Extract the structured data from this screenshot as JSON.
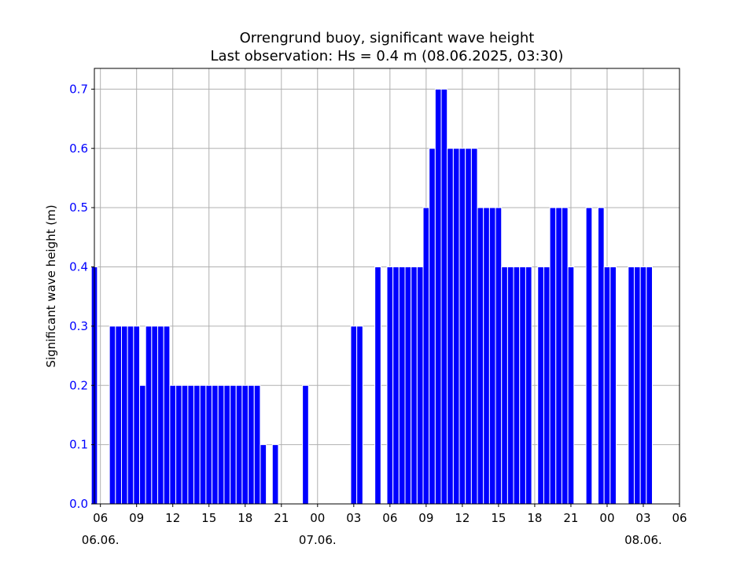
{
  "chart_data": {
    "type": "bar",
    "title": "Orrengrund buoy, significant wave height",
    "subtitle": "Last observation: Hs = 0.4 m (08.06.2025, 03:30)",
    "xlabel": "",
    "ylabel": "Significant wave height (m)",
    "ylim": [
      0.0,
      0.735
    ],
    "xlim": [
      "06.06.2025 05:30",
      "08.06.2025 06:00"
    ],
    "yticks": [
      "0.0",
      "0.1",
      "0.2",
      "0.3",
      "0.4",
      "0.5",
      "0.6",
      "0.7"
    ],
    "xticks": [
      "06",
      "09",
      "12",
      "15",
      "18",
      "21",
      "00",
      "03",
      "06",
      "09",
      "12",
      "15",
      "18",
      "21",
      "00",
      "03",
      "06"
    ],
    "date_labels": [
      "06.06.",
      "07.06.",
      "08.06."
    ],
    "bar_color": "#0000ff",
    "bar_edge_color": "#ffffff",
    "label_color": "#0000ff",
    "grid": true,
    "legend": "none",
    "series": [
      {
        "x": [
          "06.06.2025 05:30",
          "06.06.2025 07:00",
          "06.06.2025 07:30",
          "06.06.2025 08:00",
          "06.06.2025 08:30",
          "06.06.2025 09:00",
          "06.06.2025 09:30",
          "06.06.2025 10:00",
          "06.06.2025 10:30",
          "06.06.2025 11:00",
          "06.06.2025 11:30",
          "06.06.2025 12:00",
          "06.06.2025 12:30",
          "06.06.2025 13:00",
          "06.06.2025 13:30",
          "06.06.2025 14:00",
          "06.06.2025 14:30",
          "06.06.2025 15:00",
          "06.06.2025 15:30",
          "06.06.2025 16:00",
          "06.06.2025 16:30",
          "06.06.2025 17:00",
          "06.06.2025 17:30",
          "06.06.2025 18:00",
          "06.06.2025 18:30",
          "06.06.2025 19:00",
          "06.06.2025 19:30",
          "06.06.2025 20:30",
          "06.06.2025 23:00",
          "07.06.2025 03:00",
          "07.06.2025 03:30",
          "07.06.2025 05:00",
          "07.06.2025 06:00",
          "07.06.2025 06:30",
          "07.06.2025 07:00",
          "07.06.2025 07:30",
          "07.06.2025 08:00",
          "07.06.2025 08:30",
          "07.06.2025 09:00",
          "07.06.2025 09:30",
          "07.06.2025 10:00",
          "07.06.2025 10:30",
          "07.06.2025 11:00",
          "07.06.2025 11:30",
          "07.06.2025 12:00",
          "07.06.2025 12:30",
          "07.06.2025 13:00",
          "07.06.2025 13:30",
          "07.06.2025 14:00",
          "07.06.2025 14:30",
          "07.06.2025 15:00",
          "07.06.2025 15:30",
          "07.06.2025 16:00",
          "07.06.2025 16:30",
          "07.06.2025 17:00",
          "07.06.2025 17:30",
          "07.06.2025 18:30",
          "07.06.2025 19:00",
          "07.06.2025 19:30",
          "07.06.2025 20:00",
          "07.06.2025 20:30",
          "07.06.2025 21:00",
          "07.06.2025 22:30",
          "07.06.2025 23:30",
          "08.06.2025 00:00",
          "08.06.2025 00:30",
          "08.06.2025 02:00",
          "08.06.2025 02:30",
          "08.06.2025 03:00",
          "08.06.2025 03:30"
        ],
        "values": [
          0.4,
          0.3,
          0.3,
          0.3,
          0.3,
          0.3,
          0.2,
          0.3,
          0.3,
          0.3,
          0.3,
          0.2,
          0.2,
          0.2,
          0.2,
          0.2,
          0.2,
          0.2,
          0.2,
          0.2,
          0.2,
          0.2,
          0.2,
          0.2,
          0.2,
          0.2,
          0.1,
          0.1,
          0.2,
          0.3,
          0.3,
          0.4,
          0.4,
          0.4,
          0.4,
          0.4,
          0.4,
          0.4,
          0.5,
          0.6,
          0.7,
          0.7,
          0.6,
          0.6,
          0.6,
          0.6,
          0.6,
          0.5,
          0.5,
          0.5,
          0.5,
          0.4,
          0.4,
          0.4,
          0.4,
          0.4,
          0.4,
          0.4,
          0.5,
          0.5,
          0.5,
          0.4,
          0.5,
          0.5,
          0.4,
          0.4,
          0.4,
          0.4,
          0.4,
          0.4
        ]
      }
    ]
  }
}
